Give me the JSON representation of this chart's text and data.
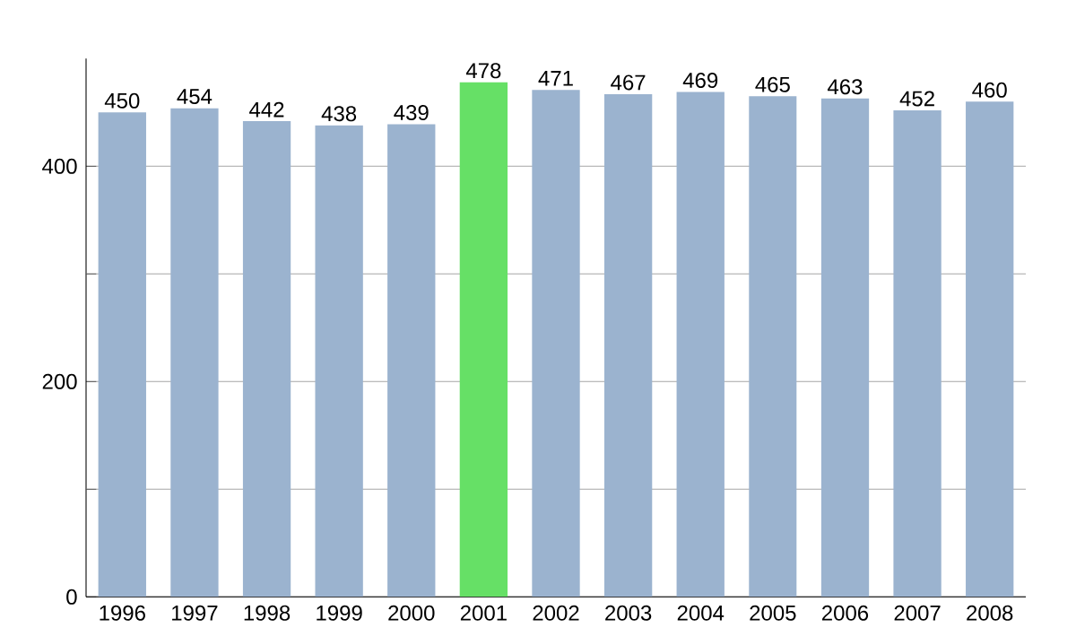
{
  "chart_data": {
    "type": "bar",
    "categories": [
      "1996",
      "1997",
      "1998",
      "1999",
      "2000",
      "2001",
      "2002",
      "2003",
      "2004",
      "2005",
      "2006",
      "2007",
      "2008"
    ],
    "values": [
      450,
      454,
      442,
      438,
      439,
      478,
      471,
      467,
      469,
      465,
      463,
      452,
      460
    ],
    "colors": [
      "#9bb3cf",
      "#9bb3cf",
      "#9bb3cf",
      "#9bb3cf",
      "#9bb3cf",
      "#66e066",
      "#9bb3cf",
      "#9bb3cf",
      "#9bb3cf",
      "#9bb3cf",
      "#9bb3cf",
      "#9bb3cf",
      "#9bb3cf"
    ],
    "ylim": [
      0,
      500
    ],
    "yticks": [
      0,
      {
        "value": 100,
        "label": null
      },
      200,
      {
        "value": 300,
        "label": null
      },
      400
    ],
    "grid": "y",
    "data_labels": true
  }
}
